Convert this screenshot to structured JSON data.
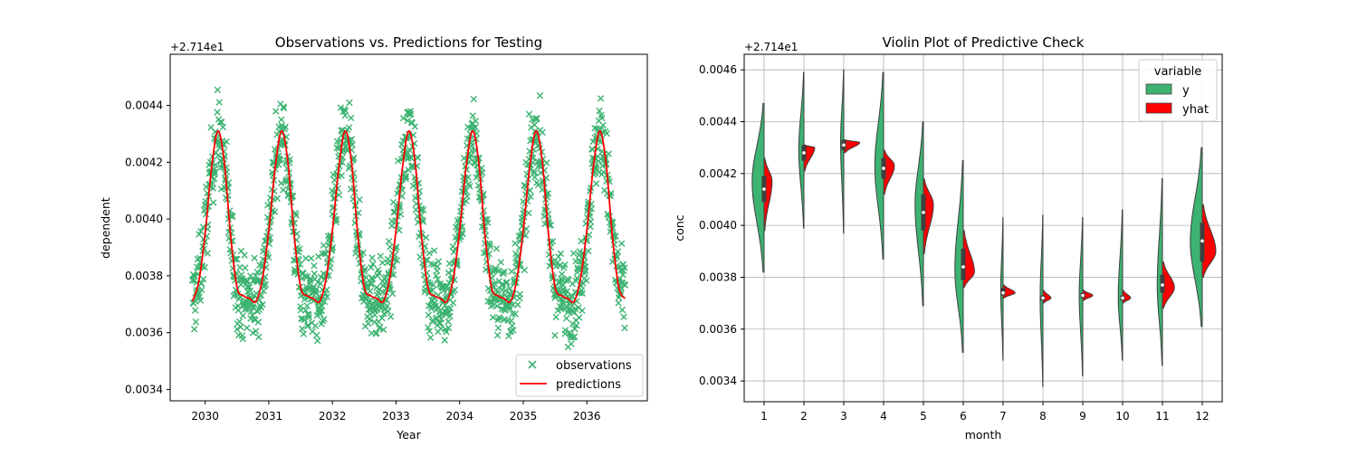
{
  "chart_data": [
    {
      "type": "scatter",
      "title": "Observations vs. Predictions for Testing",
      "xlabel": "Year",
      "ylabel": "dependent",
      "offset_label": "+2.714e1",
      "x_ticks": [
        "2030",
        "2031",
        "2032",
        "2033",
        "2034",
        "2035",
        "2036"
      ],
      "y_ticks": [
        "0.0034",
        "0.0036",
        "0.0038",
        "0.0040",
        "0.0042",
        "0.0044"
      ],
      "xlim": [
        2029.45,
        2036.95
      ],
      "ylim": [
        0.00336,
        0.00458
      ],
      "legend_position": "lower right",
      "series": [
        {
          "name": "observations",
          "marker": "x",
          "color": "#3cb371",
          "description": "scattered daily observations oscillating seasonally between about 0.0035 and 0.00455"
        },
        {
          "name": "predictions",
          "color": "#ff0000",
          "x": [
            2029.8,
            2029.9,
            2030.0,
            2030.1,
            2030.2,
            2030.3,
            2030.4,
            2030.5,
            2030.6,
            2030.7,
            2030.8,
            2030.9,
            2031.0,
            2031.1,
            2031.2,
            2031.3,
            2031.4,
            2031.5,
            2031.6,
            2031.7,
            2031.8,
            2031.9,
            2032.0,
            2032.1,
            2032.2,
            2032.3,
            2032.4,
            2032.5,
            2032.6,
            2032.7,
            2032.8,
            2032.9,
            2033.0,
            2033.1,
            2033.2,
            2033.3,
            2033.4,
            2033.5,
            2033.6,
            2033.7,
            2033.8,
            2033.9,
            2034.0,
            2034.1,
            2034.2,
            2034.3,
            2034.4,
            2034.5,
            2034.6,
            2034.7,
            2034.8,
            2034.9,
            2035.0,
            2035.1,
            2035.2,
            2035.3,
            2035.4,
            2035.5,
            2035.6,
            2035.7,
            2035.8,
            2035.9,
            2036.0,
            2036.1,
            2036.2,
            2036.3,
            2036.4,
            2036.5,
            2036.6
          ],
          "values": [
            0.00371,
            0.00378,
            0.00395,
            0.00418,
            0.00431,
            0.0042,
            0.00394,
            0.00376,
            0.00373,
            0.00372,
            0.00371,
            0.00379,
            0.00396,
            0.00418,
            0.00431,
            0.0042,
            0.00394,
            0.00376,
            0.00373,
            0.00372,
            0.00371,
            0.00379,
            0.00396,
            0.00418,
            0.00431,
            0.0042,
            0.00394,
            0.00376,
            0.00373,
            0.00372,
            0.00371,
            0.00379,
            0.00396,
            0.00418,
            0.00431,
            0.0042,
            0.00394,
            0.00376,
            0.00373,
            0.00372,
            0.00371,
            0.00379,
            0.00396,
            0.00418,
            0.00431,
            0.0042,
            0.00394,
            0.00376,
            0.00373,
            0.00372,
            0.00371,
            0.00379,
            0.00396,
            0.00418,
            0.00431,
            0.0042,
            0.00394,
            0.00376,
            0.00373,
            0.00372,
            0.00371,
            0.00379,
            0.00396,
            0.00418,
            0.00431,
            0.0042,
            0.00394,
            0.00376,
            0.00372
          ]
        }
      ]
    },
    {
      "type": "violin",
      "title": "Violin Plot of Predictive Check",
      "xlabel": "month",
      "ylabel": "conc",
      "offset_label": "+2.714e1",
      "categories": [
        "1",
        "2",
        "3",
        "4",
        "5",
        "6",
        "7",
        "8",
        "9",
        "10",
        "11",
        "12"
      ],
      "y_ticks": [
        "0.0034",
        "0.0036",
        "0.0038",
        "0.0040",
        "0.0042",
        "0.0044",
        "0.0046"
      ],
      "ylim": [
        0.00332,
        0.00466
      ],
      "grid": true,
      "split": true,
      "legend_position": "upper right",
      "legend_title": "variable",
      "series": [
        {
          "name": "y",
          "color": "#3cb371",
          "median": [
            0.00414,
            0.00428,
            0.00431,
            0.00422,
            0.00405,
            0.00384,
            0.00374,
            0.00372,
            0.00373,
            0.00372,
            0.00377,
            0.00394
          ],
          "q1": [
            0.00409,
            0.00425,
            0.00429,
            0.00418,
            0.00398,
            0.00379,
            0.00373,
            0.00371,
            0.00372,
            0.00371,
            0.00374,
            0.00386
          ],
          "q3": [
            0.00419,
            0.00431,
            0.00433,
            0.00426,
            0.00412,
            0.00391,
            0.00376,
            0.00373,
            0.00374,
            0.00373,
            0.00381,
            0.00401
          ],
          "min": [
            0.00382,
            0.00399,
            0.00397,
            0.00387,
            0.00369,
            0.00351,
            0.00348,
            0.00338,
            0.00342,
            0.00348,
            0.00346,
            0.00361
          ],
          "max": [
            0.00447,
            0.00459,
            0.0046,
            0.00459,
            0.0044,
            0.00425,
            0.00403,
            0.00404,
            0.00403,
            0.00406,
            0.00418,
            0.0043
          ],
          "peak": [
            0.00417,
            0.00429,
            0.00432,
            0.00423,
            0.00408,
            0.00383,
            0.00375,
            0.00372,
            0.00373,
            0.00372,
            0.00377,
            0.00394
          ],
          "half_width": [
            0.3,
            0.13,
            0.08,
            0.22,
            0.21,
            0.21,
            0.06,
            0.07,
            0.09,
            0.11,
            0.13,
            0.3
          ]
        },
        {
          "name": "yhat",
          "color": "#ff0000",
          "min": [
            0.00398,
            0.00421,
            0.00428,
            0.00412,
            0.00389,
            0.00376,
            0.00372,
            0.0037,
            0.00371,
            0.0037,
            0.00368,
            0.0038
          ],
          "max": [
            0.00426,
            0.00431,
            0.00433,
            0.00429,
            0.00418,
            0.00398,
            0.00377,
            0.00375,
            0.00375,
            0.00375,
            0.00386,
            0.00408
          ],
          "peak": [
            0.00417,
            0.0043,
            0.00432,
            0.00423,
            0.00408,
            0.00382,
            0.00374,
            0.00372,
            0.00373,
            0.00372,
            0.00376,
            0.0039
          ],
          "half_width": [
            0.2,
            0.27,
            0.4,
            0.27,
            0.25,
            0.28,
            0.3,
            0.2,
            0.25,
            0.2,
            0.3,
            0.34
          ]
        }
      ]
    }
  ]
}
